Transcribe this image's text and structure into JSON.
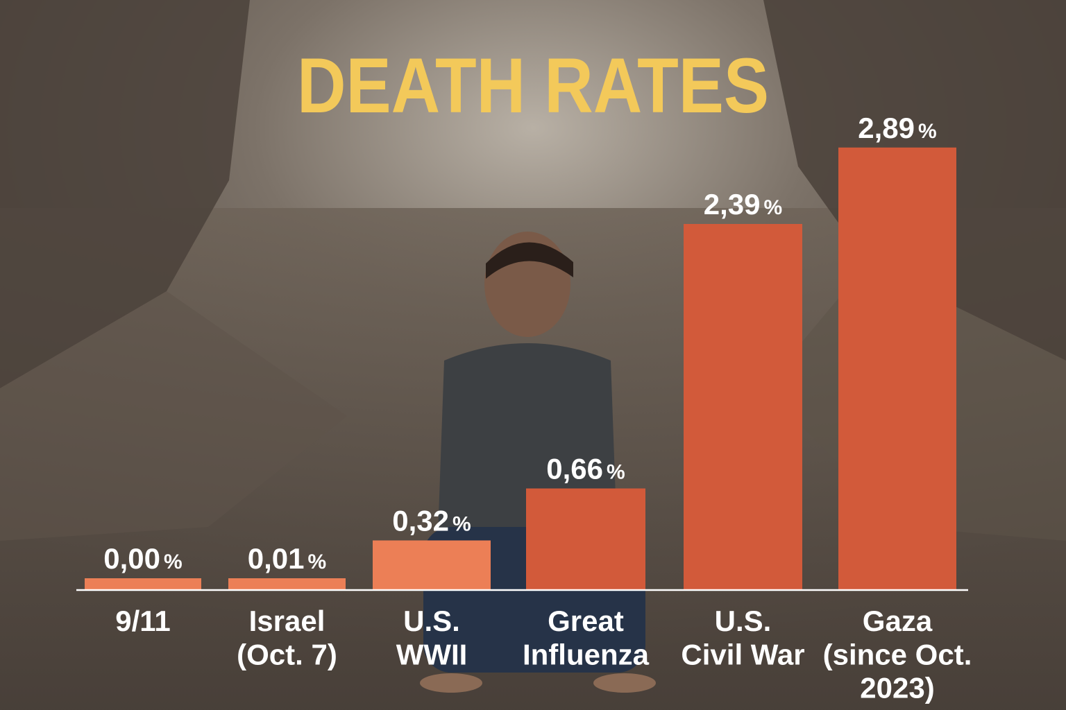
{
  "colors": {
    "title": "#f3c95a",
    "bar_light": "#ec7f56",
    "bar_dark": "#d25a3a",
    "text": "#ffffff",
    "baseline": "#ffffff"
  },
  "chart_data": {
    "type": "bar",
    "title": "DEATH RATES",
    "categories": [
      [
        "9/11"
      ],
      [
        "Israel",
        "(Oct. 7)"
      ],
      [
        "U.S.",
        "WWII"
      ],
      [
        "Great",
        "Influenza"
      ],
      [
        "U.S.",
        "Civil War"
      ],
      [
        "Gaza",
        "(since Oct.",
        "2023)"
      ]
    ],
    "values": [
      0.0,
      0.01,
      0.32,
      0.66,
      2.39,
      2.89
    ],
    "value_labels": [
      "0,00",
      "0,01",
      "0,32",
      "0,66",
      "2,39",
      "2,89"
    ],
    "value_suffix": "%",
    "ylim": [
      0,
      3.0
    ],
    "grid": false,
    "legend": "none"
  }
}
